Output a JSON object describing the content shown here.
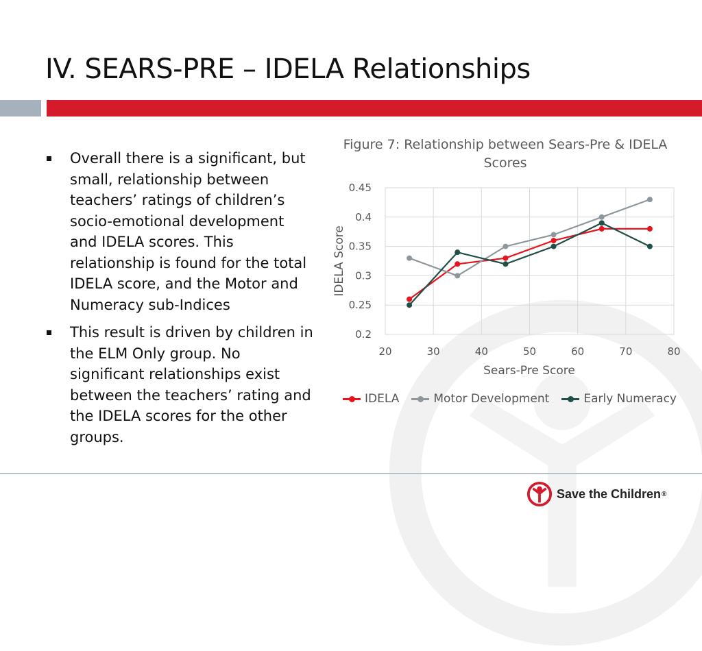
{
  "slide": {
    "title": "IV. SEARS-PRE – IDELA Relationships",
    "bullets": [
      "Overall there is a significant, but small, relationship between teachers’ ratings of children’s socio-emotional development and IDELA scores. This relationship is found for the total IDELA score, and the Motor and Numeracy sub-Indices",
      "This result is driven by children in the ELM Only group.  No significant relationships exist between the teachers’ rating and the IDELA scores for the other groups."
    ]
  },
  "chart_data": {
    "type": "line",
    "title": "Figure 7: Relationship between Sears-Pre & IDELA Scores",
    "xlabel": "Sears-Pre Score",
    "ylabel": "IDELA Score",
    "xlim": [
      20,
      80
    ],
    "ylim": [
      0.2,
      0.45
    ],
    "xticks": [
      "20",
      "30",
      "40",
      "50",
      "60",
      "70",
      "80"
    ],
    "yticks": [
      "0.2",
      "0.25",
      "0.3",
      "0.35",
      "0.4",
      "0.45"
    ],
    "grid": true,
    "legend_position": "bottom",
    "x": [
      25,
      35,
      45,
      55,
      65,
      75
    ],
    "series": [
      {
        "name": "IDELA",
        "color": "#e8141c",
        "values": [
          0.26,
          0.32,
          0.33,
          0.36,
          0.38,
          0.38
        ]
      },
      {
        "name": "Motor Development",
        "color": "#8e979c",
        "values": [
          0.33,
          0.3,
          0.35,
          0.37,
          0.4,
          0.43
        ]
      },
      {
        "name": "Early Numeracy",
        "color": "#1f4f47",
        "values": [
          0.25,
          0.34,
          0.32,
          0.35,
          0.39,
          0.35
        ]
      }
    ]
  },
  "footer": {
    "logo_text": "Save the Children",
    "logo_mark": "®",
    "brand_color": "#d31b2c"
  }
}
